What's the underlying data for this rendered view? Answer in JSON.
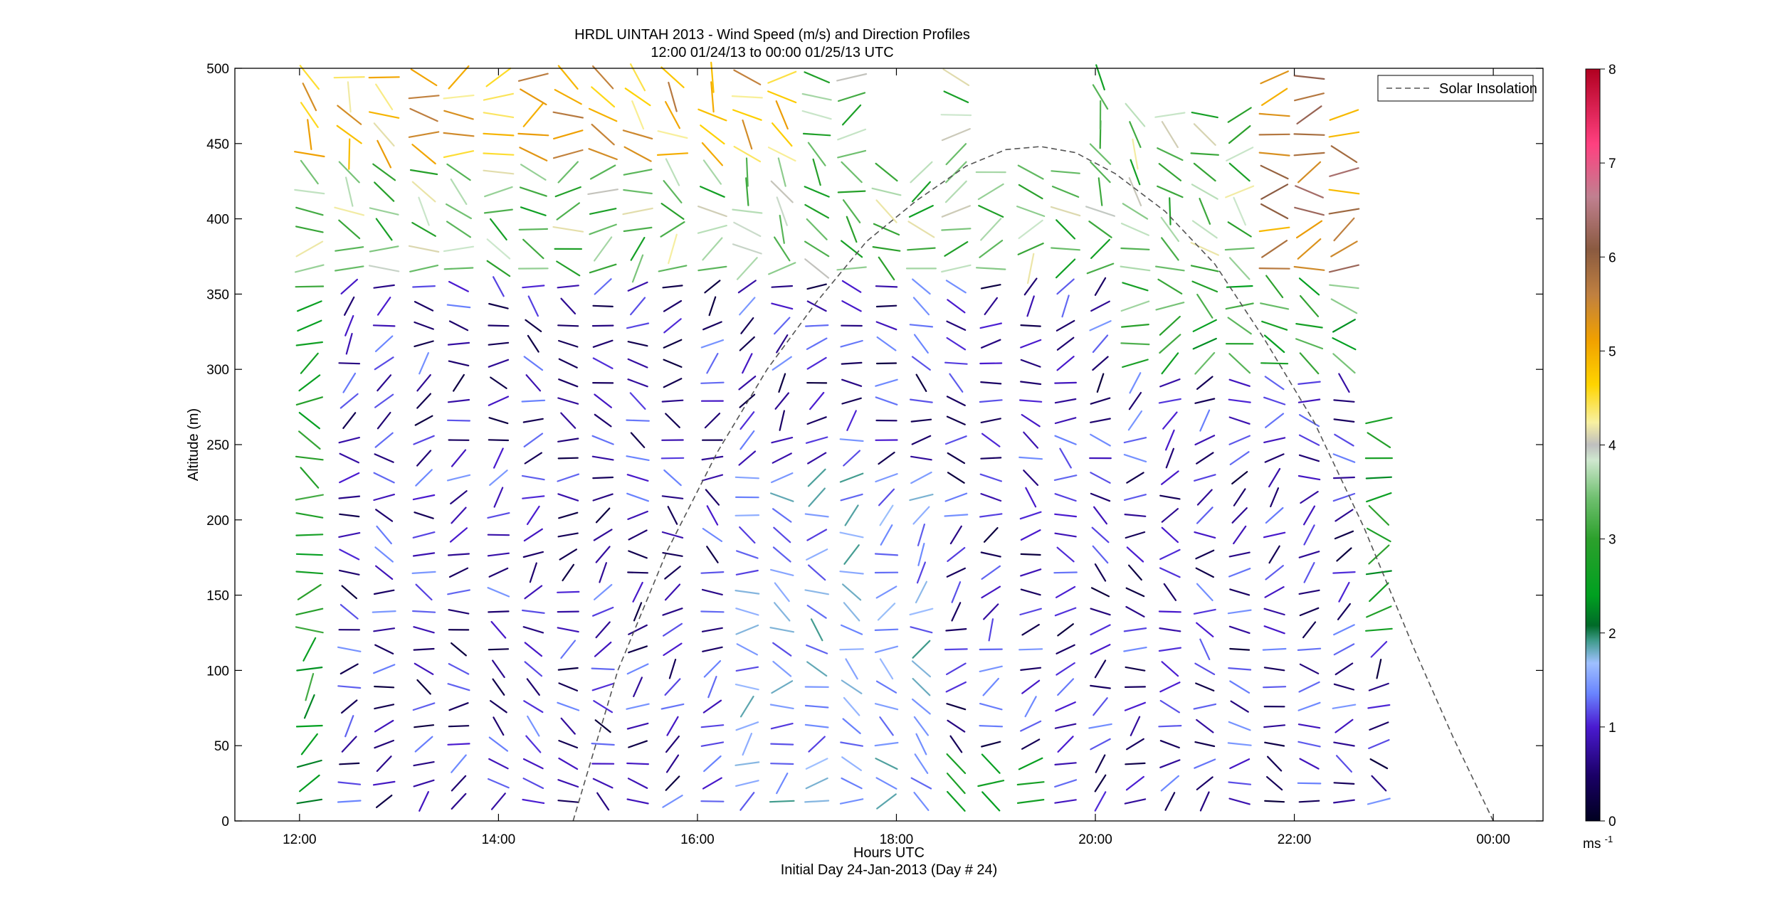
{
  "chart_data": {
    "type": "quiver",
    "title_lines": [
      "HRDL UINTAH 2013 - Wind Speed (m/s) and Direction Profiles",
      "12:00 01/24/13 to 00:00 01/25/13  UTC"
    ],
    "xlabel": "Hours UTC",
    "xsublabel": "Initial Day 24-Jan-2013 (Day # 24)",
    "ylabel": "Altitude (m)",
    "xlim_hours": [
      11.35,
      24.5
    ],
    "ylim": [
      0,
      500
    ],
    "x_ticks": [
      {
        "hour": 12,
        "label": "12:00"
      },
      {
        "hour": 14,
        "label": "14:00"
      },
      {
        "hour": 16,
        "label": "16:00"
      },
      {
        "hour": 18,
        "label": "18:00"
      },
      {
        "hour": 20,
        "label": "20:00"
      },
      {
        "hour": 22,
        "label": "22:00"
      },
      {
        "hour": 24,
        "label": "00:00"
      }
    ],
    "y_ticks": [
      0,
      50,
      100,
      150,
      200,
      250,
      300,
      350,
      400,
      450,
      500
    ],
    "colorbar": {
      "min": 0,
      "max": 8,
      "ticks": [
        0,
        1,
        2,
        3,
        4,
        5,
        6,
        7,
        8
      ],
      "unit_label": "ms",
      "unit_exponent": "-1"
    },
    "legend": {
      "entries": [
        {
          "label": "Solar Insolation",
          "style": "dashed"
        }
      ],
      "position": "top-right"
    },
    "solar_insolation": {
      "x_hours": [
        14.75,
        15.2,
        15.7,
        16.2,
        16.7,
        17.2,
        17.7,
        18.2,
        18.7,
        19.1,
        19.45,
        19.8,
        20.2,
        20.7,
        21.2,
        21.7,
        22.2,
        22.7,
        23.2,
        23.6,
        24.0
      ],
      "y_m": [
        0,
        100,
        180,
        245,
        300,
        345,
        385,
        412,
        435,
        446,
        448,
        444,
        430,
        405,
        370,
        320,
        265,
        195,
        115,
        55,
        0
      ]
    },
    "profile_hours": [
      12.1,
      12.5,
      12.85,
      13.25,
      13.6,
      14.0,
      14.35,
      14.7,
      15.05,
      15.4,
      15.75,
      16.15,
      16.5,
      16.85,
      17.2,
      17.55,
      17.9,
      18.25,
      18.6,
      18.95,
      19.35,
      19.7,
      20.05,
      20.4,
      20.75,
      21.1,
      21.45,
      21.8,
      22.15,
      22.5,
      22.85
    ],
    "altitudes_m": [
      13,
      25,
      38,
      51,
      63,
      76,
      89,
      101,
      114,
      127,
      139,
      152,
      165,
      177,
      190,
      203,
      215,
      228,
      241,
      253,
      266,
      279,
      291,
      304,
      317,
      329,
      342,
      355,
      367,
      380,
      393,
      405,
      418,
      431,
      443,
      456,
      469,
      481,
      494
    ]
  }
}
